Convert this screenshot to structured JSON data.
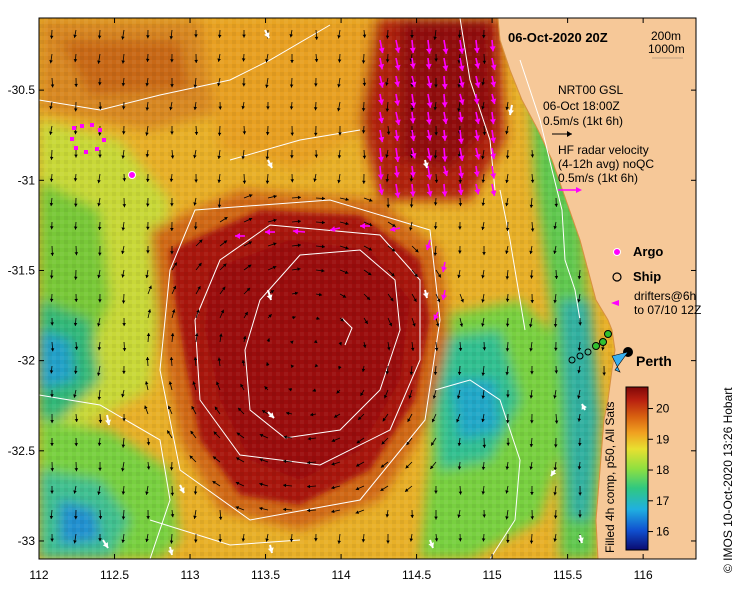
{
  "title": "06-Oct-2020 20Z",
  "depth_legend": {
    "line1": "200m",
    "line2": "1000m"
  },
  "altimetry_legend": {
    "line1": "NRT00 GSL",
    "line2": "06-Oct 18:00Z",
    "line3": "0.5m/s (1kt 6h)"
  },
  "radar_legend": {
    "line1": "HF radar velocity",
    "line2": "(4-12h avg) noQC",
    "line3": "0.5m/s (1kt 6h)"
  },
  "markers_legend": {
    "argo": "Argo",
    "ship": "Ship",
    "drifters_line1": "drifters@6h",
    "drifters_line2": "to 07/10 12Z"
  },
  "place_label": "Perth",
  "colorbar": {
    "ticks": [
      16,
      17,
      18,
      19,
      20
    ],
    "range": [
      15.4,
      20.7
    ],
    "label": "Filled 4h comp, p50, All Sats"
  },
  "side_credit": "© IMOS 10-Oct-2020 13:26 Hobart",
  "axes": {
    "x_ticks": [
      "112",
      "112.5",
      "113",
      "113.5",
      "114",
      "114.5",
      "115",
      "115.5",
      "116"
    ],
    "x_values": [
      112,
      112.5,
      113,
      113.5,
      114,
      114.5,
      115,
      115.5,
      116
    ],
    "y_ticks": [
      "-30.5",
      "-31",
      "-31.5",
      "-32",
      "-32.5",
      "-33"
    ],
    "y_values": [
      -30.5,
      -31,
      -31.5,
      -32,
      -32.5,
      -33
    ],
    "lon_range": [
      112,
      116.35
    ],
    "lat_range": [
      -30.1,
      -33.1
    ]
  },
  "colors": {
    "land": "#f6c898",
    "warm_core": "#a01010",
    "radar_arrow": "#ff00ff",
    "argo": "#ff00ff",
    "drifter_ship": "#30c030",
    "contour": "#ffffff"
  },
  "points": {
    "perth": {
      "lon": 115.86,
      "lat": -31.95
    },
    "argo": [
      {
        "lon": 112.6,
        "lat": -30.95
      },
      {
        "lon": 112.35,
        "lat": -30.8
      }
    ],
    "ship": [
      {
        "lon": 115.6,
        "lat": -32.0
      },
      {
        "lon": 115.62,
        "lat": -31.9
      }
    ]
  }
}
